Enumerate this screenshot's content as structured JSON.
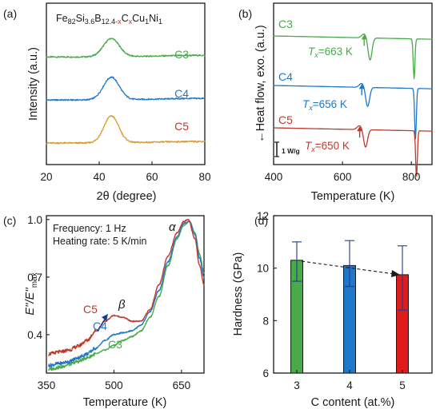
{
  "colors": {
    "green": "#4aaa4a",
    "blue": "#1f77c9",
    "red": "#c0392b",
    "orange": "#d99a2b",
    "navy": "#1f3a8a",
    "axis": "#1a1a1a"
  },
  "chart_data": [
    {
      "panel": "(a)",
      "type": "line",
      "composition": {
        "prefix": "Fe",
        "s1": "82",
        "e2": "Si",
        "s2": "3.6",
        "e3": "B",
        "s3": "12.4-",
        "x1": "x",
        "e4": "C",
        "x2": "x",
        "e5": "Cu",
        "s5": "1",
        "e6": "Ni",
        "s6": "1"
      },
      "xlabel": "2θ (degree)",
      "ylabel": "Intensity (a.u.)",
      "xlim": [
        20,
        80
      ],
      "xticks": [
        "20",
        "40",
        "60",
        "80"
      ],
      "series": [
        {
          "name": "C3",
          "color": "#4aaa4a",
          "offset": 2.0,
          "peak_center": 44.6,
          "peak_height": 0.34,
          "peak_width": 3.0,
          "x": [
            20,
            80
          ]
        },
        {
          "name": "C4",
          "color": "#1f77c9",
          "offset": 1.2,
          "peak_center": 44.6,
          "peak_height": 0.42,
          "peak_width": 3.0,
          "x": [
            20,
            80
          ]
        },
        {
          "name": "C5",
          "color": "#d99a2b",
          "offset": 0.4,
          "peak_center": 44.6,
          "peak_height": 0.5,
          "peak_width": 2.8,
          "x": [
            20,
            80
          ]
        }
      ]
    },
    {
      "panel": "(b)",
      "type": "line",
      "xlabel": "Temperature (K)",
      "ylabel": "←Heat flow, exo. (a.u.)",
      "scalebar": "1 W/g",
      "xlim": [
        400,
        860
      ],
      "xticks": [
        "400",
        "600",
        "800"
      ],
      "series": [
        {
          "name": "C3",
          "color": "#4aaa4a",
          "tx_label": "T",
          "tx_sub": "x",
          "tx_value": "=663 K",
          "tx": 663,
          "p1": 680,
          "p2": 808
        },
        {
          "name": "C4",
          "color": "#1f77c9",
          "tx_label": "T",
          "tx_sub": "x",
          "tx_value": "=656 K",
          "tx": 656,
          "p1": 673,
          "p2": 812
        },
        {
          "name": "C5",
          "color": "#c0392b",
          "tx_label": "T",
          "tx_sub": "x",
          "tx_value": "=650 K",
          "tx": 650,
          "p1": 667,
          "p2": 815
        }
      ]
    },
    {
      "panel": "(c)",
      "type": "line",
      "xlabel": "Temperature (K)",
      "ylabel_main": "E''/E''",
      "ylabel_sub": "max",
      "xlim": [
        350,
        700
      ],
      "ylim": [
        0.2,
        1.02
      ],
      "xticks": [
        "350",
        "500",
        "650"
      ],
      "yticks": [
        "0.4",
        "0.7",
        "1.0"
      ],
      "annotations": [
        "Frequency: 1 Hz",
        "Heating rate: 5 K/min",
        "α",
        "β"
      ],
      "series": [
        {
          "name": "C3",
          "color": "#4aaa4a",
          "x": [
            355,
            380,
            400,
            420,
            440,
            460,
            480,
            500,
            520,
            540,
            560,
            580,
            600,
            620,
            640,
            655,
            668,
            680,
            690,
            700
          ],
          "y": [
            0.22,
            0.23,
            0.245,
            0.26,
            0.28,
            0.3,
            0.32,
            0.345,
            0.37,
            0.39,
            0.42,
            0.49,
            0.6,
            0.76,
            0.9,
            0.97,
            0.99,
            0.93,
            0.82,
            0.72
          ]
        },
        {
          "name": "C4",
          "color": "#1f77c9",
          "x": [
            355,
            380,
            400,
            420,
            440,
            460,
            480,
            500,
            520,
            540,
            560,
            580,
            600,
            620,
            640,
            655,
            668,
            680,
            690,
            700
          ],
          "y": [
            0.24,
            0.25,
            0.26,
            0.28,
            0.3,
            0.33,
            0.37,
            0.4,
            0.41,
            0.42,
            0.45,
            0.52,
            0.63,
            0.78,
            0.91,
            0.98,
            0.99,
            0.92,
            0.8,
            0.7
          ]
        },
        {
          "name": "C5",
          "color": "#c0392b",
          "x": [
            355,
            380,
            400,
            420,
            440,
            460,
            480,
            500,
            520,
            540,
            560,
            580,
            600,
            620,
            640,
            655,
            665,
            680,
            690,
            700
          ],
          "y": [
            0.3,
            0.31,
            0.32,
            0.34,
            0.37,
            0.42,
            0.47,
            0.5,
            0.49,
            0.47,
            0.47,
            0.53,
            0.66,
            0.81,
            0.93,
            0.99,
            1.0,
            0.9,
            0.76,
            0.66
          ]
        }
      ]
    },
    {
      "panel": "(d)",
      "type": "bar",
      "xlabel": "C content (at.%)",
      "ylabel": "Hardness (GPa)",
      "ylim": [
        6,
        12
      ],
      "yticks": [
        "6",
        "8",
        "10",
        "12"
      ],
      "categories": [
        "3",
        "4",
        "5"
      ],
      "values": [
        10.3,
        10.1,
        9.75
      ],
      "error_upper": [
        11.0,
        11.05,
        10.85
      ],
      "error_lower": [
        9.5,
        9.3,
        8.4
      ],
      "bar_colors": [
        "#4aaa4a",
        "#1f77c9",
        "#e01b1b"
      ],
      "trend_arrow": true
    }
  ]
}
